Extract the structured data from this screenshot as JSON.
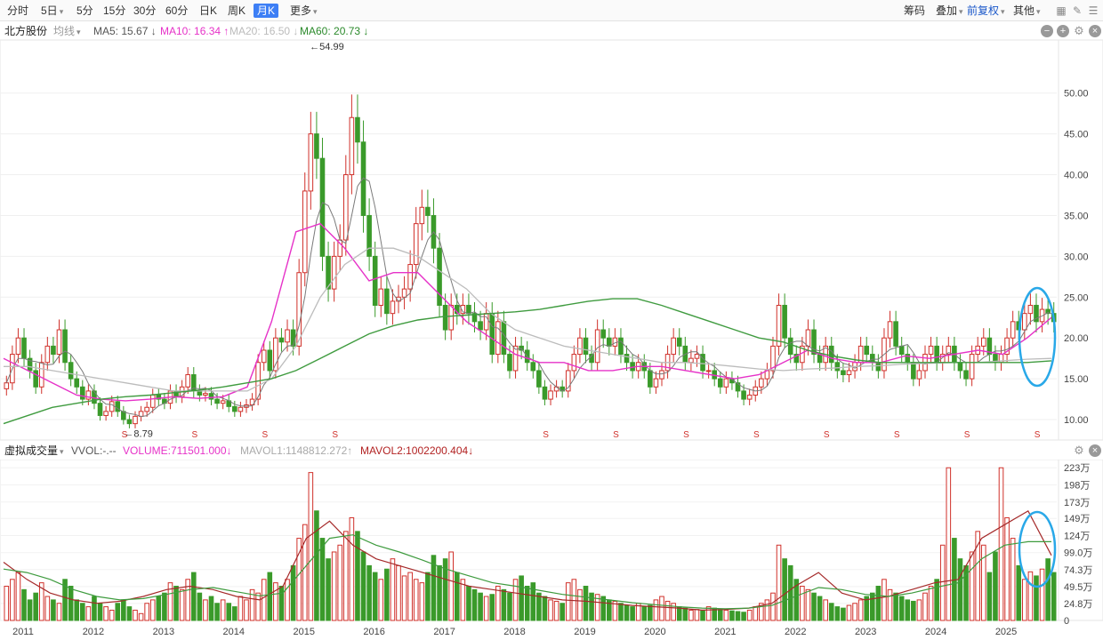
{
  "toolbar": {
    "periods": [
      "分时",
      "5日",
      "5分",
      "15分",
      "30分",
      "60分",
      "日K",
      "周K",
      "月K",
      "更多"
    ],
    "active": "月K",
    "right": [
      "筹码",
      "叠加",
      "前复权",
      "其他"
    ]
  },
  "price_header": {
    "name": "北方股份",
    "ma_type": "均线",
    "ma5": "MA5: 15.67 ↓",
    "ma10": "MA10: 16.34 ↑",
    "ma20": "MA20: 16.50 ↓",
    "ma60": "MA60: 20.73 ↓"
  },
  "volume_header": {
    "name": "虚拟成交量",
    "vvol": "VVOL:-.--",
    "volume": "VOLUME:711501.000↓",
    "mavol1": "MAVOL1:1148812.272↑",
    "mavol2": "MAVOL2:1002200.404↓"
  },
  "colors": {
    "up": "#d0302a",
    "down": "#3a9a2a",
    "ma5": "#7a7a7a",
    "ma10": "#e632c8",
    "ma20": "#bcbcbc",
    "ma60": "#3f9b3f",
    "mavol1": "#a52a2a",
    "mavol2": "#3e9b3e",
    "highlight": "#29a8e8"
  },
  "chart_data": [
    {
      "type": "candlestick",
      "title": "北方股份 月K",
      "y_ticks": [
        "50.00",
        "45.00",
        "40.00",
        "35.00",
        "30.00",
        "25.00",
        "20.00",
        "15.00",
        "10.00"
      ],
      "ylim": [
        7.5,
        56.5
      ],
      "x_ticks": [
        "2011",
        "2012",
        "2013",
        "2014",
        "2015",
        "2016",
        "2017",
        "2018",
        "2019",
        "2020",
        "2021",
        "2022",
        "2023",
        "2024",
        "2025"
      ],
      "annotations": {
        "high": "54.99",
        "low": "8.79"
      },
      "s_markers": [
        "2012",
        "2013",
        "2014",
        "2015",
        "2018",
        "2019",
        "2020",
        "2021",
        "2022",
        "2023",
        "2024",
        "2025"
      ],
      "years": {
        "2011": [
          14.5,
          18,
          20,
          17.5,
          16,
          14,
          17,
          19,
          18,
          21,
          17,
          15
        ],
        "2012": [
          14,
          12.5,
          13.5,
          12,
          10.5,
          11,
          12.2,
          11,
          10,
          9.5,
          10.4,
          11
        ],
        "2013": [
          11.5,
          13,
          12.5,
          12,
          13.5,
          12.8,
          14,
          15.5,
          13.5,
          13,
          13.2,
          12.5
        ],
        "2014": [
          12,
          12.3,
          11.6,
          11,
          11.5,
          11.8,
          12.5,
          17,
          18.5,
          16,
          20,
          19.5
        ],
        "2015": [
          21,
          19,
          28,
          38,
          45,
          42,
          30,
          26,
          30,
          32,
          40,
          47
        ],
        "2016": [
          44,
          35,
          30,
          24,
          26,
          23,
          24.5,
          25,
          26,
          29,
          34,
          36
        ],
        "2017": [
          35,
          31,
          24,
          21,
          24,
          23,
          24,
          23,
          22,
          21,
          23,
          18
        ],
        "2018": [
          22,
          18,
          16,
          19,
          18.5,
          17,
          16,
          14,
          12.5,
          13.5,
          14,
          13.5
        ],
        "2019": [
          16,
          18,
          20,
          18,
          17,
          21,
          20,
          19,
          20,
          18,
          17,
          16
        ],
        "2020": [
          17,
          16,
          14,
          15,
          16,
          18,
          20,
          19,
          17,
          17.5,
          18,
          16
        ],
        "2021": [
          16,
          15,
          14,
          15,
          14.5,
          13.5,
          12.5,
          13,
          14,
          15,
          16,
          19
        ],
        "2022": [
          24,
          20,
          18,
          17,
          19,
          21,
          18,
          17,
          19,
          17,
          16,
          15.5
        ],
        "2023": [
          16,
          17,
          19,
          18,
          17,
          16,
          20,
          22,
          19,
          18,
          17,
          15
        ],
        "2024": [
          16,
          18,
          19,
          17,
          18,
          19,
          17,
          16,
          15,
          18,
          19,
          20
        ],
        "2025": [
          18,
          17,
          18,
          20,
          22,
          21,
          23,
          24,
          22,
          23.5,
          23,
          22
        ]
      },
      "ma_trend": {
        "ma10": [
          17.5,
          16,
          14.5,
          13,
          12.5,
          12.3,
          12.5,
          12.8,
          12.6,
          12.8,
          14,
          22,
          33,
          34,
          31,
          27,
          28,
          28,
          25,
          22,
          20,
          18,
          17,
          17,
          16,
          16,
          16.5,
          16.5,
          16,
          15.5,
          15,
          15.5,
          17,
          18.5,
          17.5,
          17,
          17,
          17.8,
          17.5,
          18,
          18.5,
          18,
          20,
          22.5
        ],
        "ma20": [
          16.5,
          16.5,
          16,
          15.5,
          15,
          14.5,
          14,
          13.5,
          13.5,
          13.5,
          13.5,
          15,
          19,
          25,
          29,
          31,
          31,
          30,
          28,
          26,
          23,
          21,
          20,
          19,
          18.5,
          18,
          17.5,
          17,
          17,
          16.8,
          16.5,
          16.2,
          16,
          16.2,
          16.3,
          16.5,
          16.6,
          16.8,
          16.9,
          17,
          17,
          17.2,
          17.4,
          17.5
        ],
        "ma60": [
          9.5,
          10.5,
          11.5,
          12,
          12.5,
          12.8,
          13,
          13.3,
          13.6,
          14,
          14.5,
          15,
          16,
          17.5,
          19,
          20.5,
          21.5,
          22.2,
          22.6,
          22.8,
          23,
          23.2,
          23.5,
          24,
          24.5,
          24.8,
          24.8,
          24,
          23,
          22,
          21,
          20,
          19.5,
          18.5,
          17.8,
          17.3,
          17,
          17,
          17,
          17,
          17,
          17,
          17,
          17.2
        ]
      }
    },
    {
      "type": "bar",
      "title": "虚拟成交量",
      "y_ticks": [
        "223万",
        "198万",
        "173万",
        "149万",
        "124万",
        "99.0万",
        "74.3万",
        "49.5万",
        "24.8万",
        "0"
      ],
      "ylim": [
        0,
        235
      ],
      "x_ticks": [
        "2011",
        "2012",
        "2013",
        "2014",
        "2015",
        "2016",
        "2017",
        "2018",
        "2019",
        "2020",
        "2021",
        "2022",
        "2023",
        "2024",
        "2025"
      ],
      "years": {
        "2011": [
          50,
          60,
          70,
          45,
          30,
          40,
          55,
          35,
          30,
          25,
          60,
          50
        ],
        "2012": [
          30,
          25,
          20,
          35,
          25,
          20,
          15,
          25,
          30,
          20,
          15,
          10
        ],
        "2013": [
          25,
          30,
          35,
          40,
          55,
          50,
          45,
          60,
          70,
          40,
          30,
          35
        ],
        "2014": [
          25,
          30,
          25,
          20,
          35,
          30,
          45,
          40,
          60,
          70,
          55,
          50
        ],
        "2015": [
          60,
          80,
          120,
          140,
          216,
          160,
          120,
          90,
          100,
          110,
          130,
          150
        ],
        "2016": [
          130,
          100,
          80,
          70,
          60,
          75,
          90,
          80,
          65,
          70,
          60,
          55
        ],
        "2017": [
          70,
          95,
          80,
          90,
          100,
          70,
          60,
          50,
          45,
          40,
          35,
          38
        ],
        "2018": [
          50,
          45,
          40,
          60,
          65,
          50,
          55,
          40,
          35,
          30,
          28,
          25
        ],
        "2019": [
          55,
          60,
          45,
          50,
          40,
          38,
          35,
          30,
          28,
          25,
          22,
          20
        ],
        "2020": [
          25,
          20,
          22,
          30,
          35,
          28,
          25,
          20,
          18,
          15,
          16,
          14
        ],
        "2021": [
          20,
          18,
          16,
          15,
          14,
          13,
          12,
          15,
          20,
          25,
          30,
          40
        ],
        "2022": [
          110,
          90,
          80,
          60,
          50,
          45,
          40,
          35,
          30,
          25,
          20,
          18
        ],
        "2023": [
          22,
          25,
          30,
          35,
          40,
          50,
          60,
          45,
          40,
          35,
          30,
          28
        ],
        "2024": [
          30,
          40,
          50,
          60,
          110,
          223,
          120,
          90,
          80,
          100,
          130,
          110
        ],
        "2025": [
          70,
          100,
          223,
          150,
          120,
          80,
          60,
          71,
          65,
          75,
          90,
          70
        ]
      },
      "mavol1_trend": [
        85,
        60,
        40,
        30,
        25,
        28,
        35,
        45,
        50,
        45,
        35,
        30,
        50,
        120,
        145,
        110,
        90,
        80,
        70,
        60,
        50,
        45,
        40,
        35,
        30,
        28,
        25,
        22,
        20,
        18,
        15,
        16,
        18,
        25,
        50,
        70,
        40,
        30,
        35,
        45,
        55,
        60,
        120,
        140,
        160,
        95
      ],
      "mavol2_trend": [
        75,
        70,
        60,
        45,
        35,
        30,
        32,
        38,
        45,
        48,
        42,
        36,
        40,
        80,
        120,
        125,
        110,
        100,
        88,
        75,
        65,
        55,
        50,
        44,
        38,
        34,
        30,
        26,
        23,
        20,
        18,
        17,
        18,
        22,
        35,
        48,
        45,
        38,
        35,
        40,
        48,
        55,
        90,
        110,
        115,
        115
      ]
    }
  ]
}
